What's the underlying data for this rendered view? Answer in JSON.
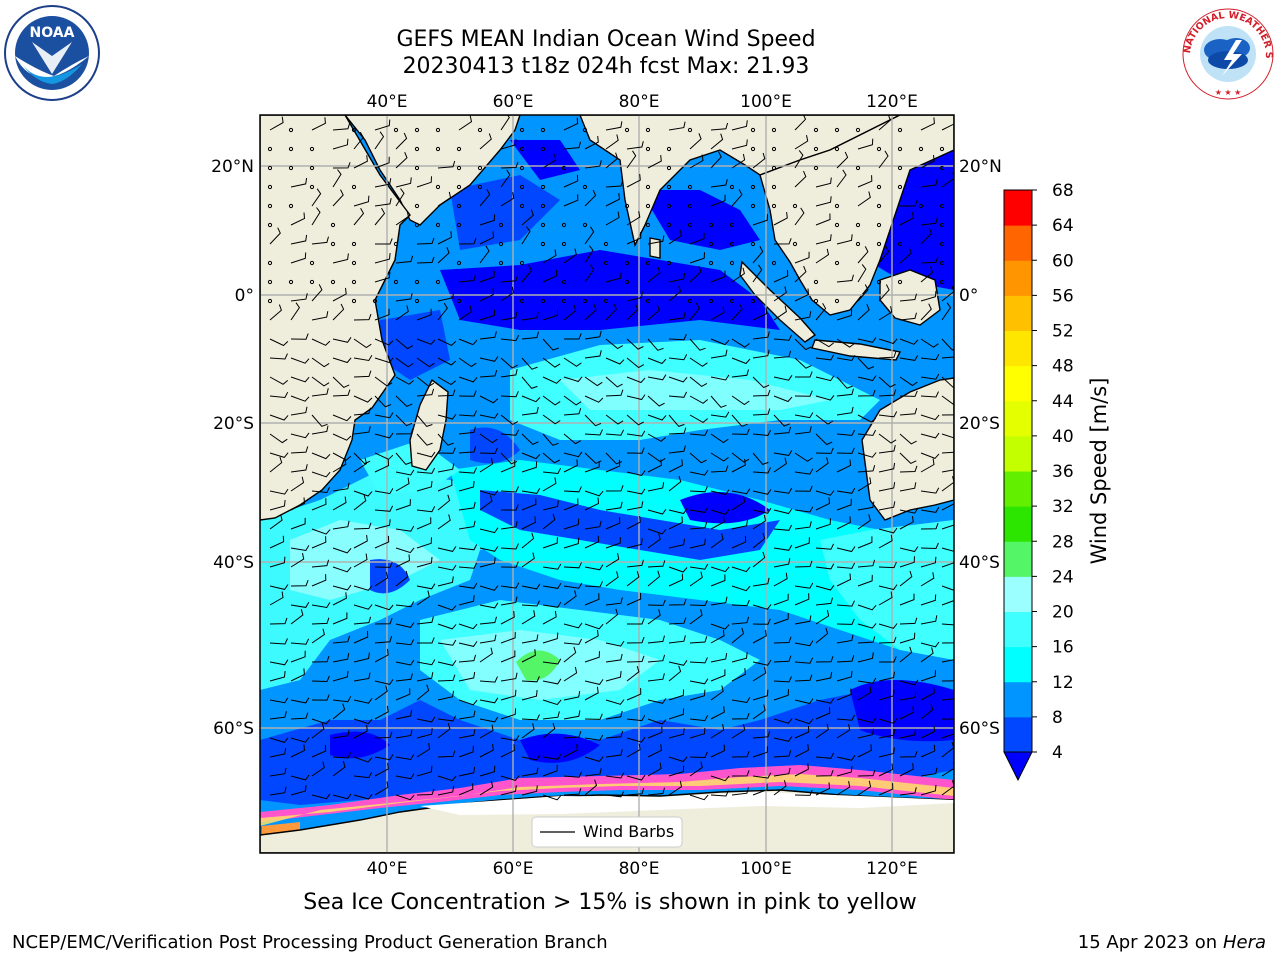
{
  "header": {
    "title_line1": "GEFS MEAN Indian Ocean Wind Speed",
    "title_line2": "20230413 t18z 024h fcst   Max: 21.93"
  },
  "map": {
    "top_lon_labels": [
      "40°E",
      "60°E",
      "80°E",
      "100°E",
      "120°E"
    ],
    "bottom_lon_labels": [
      "40°E",
      "60°E",
      "80°E",
      "100°E",
      "120°E"
    ],
    "left_lat_labels": [
      "20°N",
      "0°",
      "20°S",
      "40°S",
      "60°S"
    ],
    "right_lat_labels": [
      "20°N",
      "0°",
      "20°S",
      "40°S",
      "60°S"
    ],
    "legend_label": "Wind Barbs",
    "land_color": "#efeedd",
    "grid_color": "#b0b0b0"
  },
  "colorbar": {
    "label": "Wind Speed [m/s]",
    "tick_labels": [
      "4",
      "8",
      "12",
      "16",
      "20",
      "24",
      "28",
      "32",
      "36",
      "40",
      "44",
      "48",
      "52",
      "56",
      "60",
      "64",
      "68"
    ],
    "colors": [
      "#0047ff",
      "#0095ff",
      "#00ffff",
      "#40ffff",
      "#9bffff",
      "#54f567",
      "#2ce600",
      "#62f000",
      "#c4ff00",
      "#e3ff00",
      "#ffff00",
      "#ffe600",
      "#ffc000",
      "#ff9500",
      "#ff6500",
      "#ff3a00",
      "#ff0000"
    ],
    "under_color": "#0000ff"
  },
  "footer": {
    "ice_note": "Sea Ice Concentration > 15% is shown in pink to yellow",
    "branch": "NCEP/EMC/Verification Post Processing Product Generation Branch",
    "date": "15 Apr 2023 on",
    "machine": "Hera"
  },
  "logos": {
    "noaa": "NOAA",
    "nws": "NATIONAL WEATHER SERVICE"
  }
}
